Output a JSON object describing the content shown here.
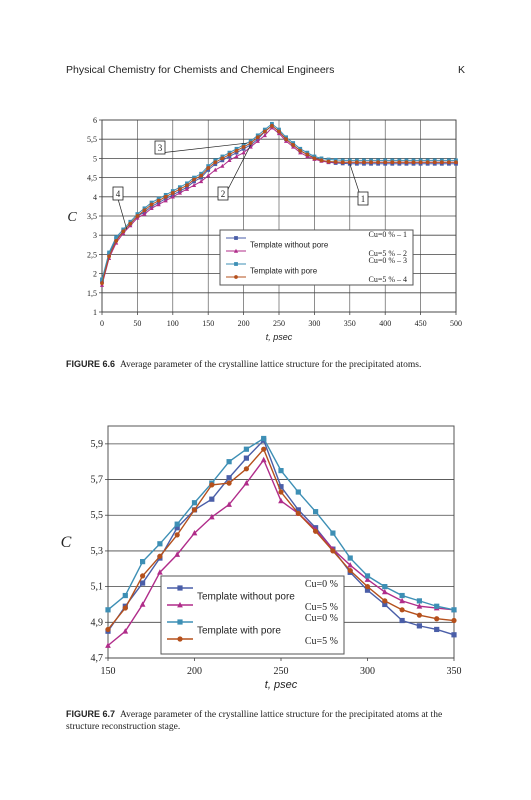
{
  "header": {
    "title": "Physical Chemistry for Chemists and Chemical Engineers",
    "letter": "K"
  },
  "figures": [
    {
      "label": "FIGURE 6.6",
      "caption": "Average parameter of the crystalline lattice structure for the precipitated atoms."
    },
    {
      "label": "FIGURE 6.7",
      "caption": "Average parameter of the crystalline lattice structure for the precipitated atoms at the structure reconstruction stage."
    }
  ],
  "chart_data": [
    {
      "type": "line",
      "xlabel": "t, psec",
      "ylabel": "C",
      "xlim": [
        0,
        500
      ],
      "ylim": [
        1,
        6
      ],
      "xticks": [
        "0",
        "50",
        "100",
        "150",
        "200",
        "250",
        "300",
        "350",
        "400",
        "450",
        "500"
      ],
      "yticks": [
        "1",
        "1,5",
        "2",
        "2,5",
        "3",
        "3,5",
        "4",
        "4,5",
        "5",
        "5,5",
        "6"
      ],
      "grid": "horizontal",
      "callouts": [
        "1",
        "2",
        "3",
        "4"
      ],
      "legend": {
        "position": "lower-right",
        "groups": [
          "Template without pore",
          "Template with pore"
        ],
        "items": [
          "Cu=0 % – 1",
          "Cu=5 % – 2",
          "Cu=0 % – 3",
          "Cu=5 % – 4"
        ]
      },
      "x": [
        0,
        10,
        20,
        30,
        40,
        50,
        60,
        70,
        80,
        90,
        100,
        110,
        120,
        130,
        140,
        150,
        160,
        170,
        180,
        190,
        200,
        210,
        220,
        230,
        240,
        250,
        260,
        270,
        280,
        290,
        300,
        310,
        320,
        330,
        340,
        350,
        360,
        370,
        380,
        390,
        400,
        410,
        420,
        430,
        440,
        450,
        460,
        470,
        480,
        490,
        500
      ],
      "series": [
        {
          "name": "Cu=0 % – 1",
          "color": "#4a5ea8",
          "marker": "square",
          "values": [
            1.8,
            2.5,
            2.9,
            3.1,
            3.3,
            3.5,
            3.6,
            3.75,
            3.85,
            3.95,
            4.05,
            4.15,
            4.25,
            4.4,
            4.5,
            4.7,
            4.85,
            4.95,
            5.05,
            5.15,
            5.25,
            5.35,
            5.5,
            5.7,
            5.85,
            5.7,
            5.5,
            5.35,
            5.2,
            5.1,
            5.02,
            4.95,
            4.9,
            4.88,
            4.87,
            4.86,
            4.86,
            4.86,
            4.86,
            4.86,
            4.86,
            4.86,
            4.86,
            4.86,
            4.86,
            4.86,
            4.86,
            4.86,
            4.86,
            4.86,
            4.86
          ]
        },
        {
          "name": "Cu=5 % – 2",
          "color": "#b02c8a",
          "marker": "triangle",
          "values": [
            1.7,
            2.4,
            2.8,
            3.05,
            3.25,
            3.45,
            3.55,
            3.7,
            3.8,
            3.9,
            4.0,
            4.1,
            4.2,
            4.3,
            4.4,
            4.55,
            4.7,
            4.8,
            4.95,
            5.05,
            5.15,
            5.3,
            5.45,
            5.6,
            5.8,
            5.65,
            5.45,
            5.3,
            5.15,
            5.05,
            4.98,
            4.93,
            4.9,
            4.9,
            4.9,
            4.9,
            4.9,
            4.9,
            4.9,
            4.9,
            4.9,
            4.9,
            4.9,
            4.9,
            4.9,
            4.9,
            4.9,
            4.9,
            4.9,
            4.9,
            4.9
          ]
        },
        {
          "name": "Cu=0 % – 3",
          "color": "#3d8fb5",
          "marker": "square",
          "values": [
            1.85,
            2.55,
            2.95,
            3.15,
            3.35,
            3.55,
            3.7,
            3.85,
            3.95,
            4.05,
            4.15,
            4.25,
            4.35,
            4.5,
            4.6,
            4.8,
            4.95,
            5.05,
            5.15,
            5.25,
            5.35,
            5.45,
            5.6,
            5.75,
            5.9,
            5.75,
            5.55,
            5.4,
            5.25,
            5.15,
            5.05,
            5.0,
            4.97,
            4.96,
            4.95,
            4.95,
            4.95,
            4.95,
            4.95,
            4.95,
            4.95,
            4.95,
            4.95,
            4.95,
            4.95,
            4.95,
            4.95,
            4.95,
            4.95,
            4.95,
            4.95
          ]
        },
        {
          "name": "Cu=5 % – 4",
          "color": "#b5501c",
          "marker": "circle",
          "values": [
            1.75,
            2.45,
            2.85,
            3.1,
            3.3,
            3.5,
            3.65,
            3.8,
            3.9,
            4.0,
            4.1,
            4.2,
            4.3,
            4.45,
            4.55,
            4.75,
            4.9,
            5.0,
            5.1,
            5.2,
            5.3,
            5.4,
            5.55,
            5.7,
            5.85,
            5.7,
            5.5,
            5.35,
            5.2,
            5.1,
            5.0,
            4.95,
            4.92,
            4.91,
            4.9,
            4.9,
            4.9,
            4.9,
            4.9,
            4.9,
            4.9,
            4.9,
            4.9,
            4.9,
            4.9,
            4.9,
            4.9,
            4.9,
            4.9,
            4.9,
            4.9
          ]
        }
      ]
    },
    {
      "type": "line",
      "xlabel": "t, psec",
      "ylabel": "C",
      "xlim": [
        150,
        350
      ],
      "ylim": [
        4.7,
        6.0
      ],
      "xticks": [
        "150",
        "200",
        "250",
        "300",
        "350"
      ],
      "yticks": [
        "4,7",
        "4,9",
        "5,1",
        "5,3",
        "5,5",
        "5,7",
        "5,9"
      ],
      "grid": "horizontal",
      "legend": {
        "position": "lower-left",
        "groups": [
          "Template without pore",
          "Template with pore"
        ],
        "items": [
          "Cu=0 %",
          "Cu=5 %",
          "Cu=0 %",
          "Cu=5 %"
        ]
      },
      "x": [
        150,
        160,
        170,
        180,
        190,
        200,
        210,
        220,
        230,
        240,
        250,
        260,
        270,
        280,
        290,
        300,
        310,
        320,
        330,
        340,
        350
      ],
      "series": [
        {
          "name": "Cu=0 %",
          "color": "#4a5ea8",
          "marker": "square",
          "values": [
            4.85,
            4.99,
            5.12,
            5.26,
            5.43,
            5.53,
            5.59,
            5.71,
            5.82,
            5.92,
            5.66,
            5.53,
            5.43,
            5.31,
            5.18,
            5.08,
            5.0,
            4.91,
            4.88,
            4.86,
            4.83
          ]
        },
        {
          "name": "Cu=5 %",
          "color": "#b02c8a",
          "marker": "triangle",
          "values": [
            4.77,
            4.85,
            5.0,
            5.18,
            5.28,
            5.4,
            5.49,
            5.56,
            5.68,
            5.81,
            5.58,
            5.51,
            5.42,
            5.31,
            5.22,
            5.14,
            5.07,
            5.02,
            4.99,
            4.98,
            4.97
          ]
        },
        {
          "name": "Cu=0 %",
          "color": "#3d8fb5",
          "marker": "square",
          "values": [
            4.97,
            5.05,
            5.24,
            5.34,
            5.45,
            5.57,
            5.68,
            5.8,
            5.87,
            5.93,
            5.75,
            5.63,
            5.52,
            5.4,
            5.26,
            5.16,
            5.1,
            5.05,
            5.02,
            4.99,
            4.97
          ]
        },
        {
          "name": "Cu=5 %",
          "color": "#b5501c",
          "marker": "circle",
          "values": [
            4.86,
            4.98,
            5.16,
            5.27,
            5.39,
            5.53,
            5.67,
            5.68,
            5.76,
            5.87,
            5.63,
            5.51,
            5.41,
            5.3,
            5.19,
            5.1,
            5.02,
            4.97,
            4.94,
            4.92,
            4.91
          ]
        }
      ]
    }
  ]
}
